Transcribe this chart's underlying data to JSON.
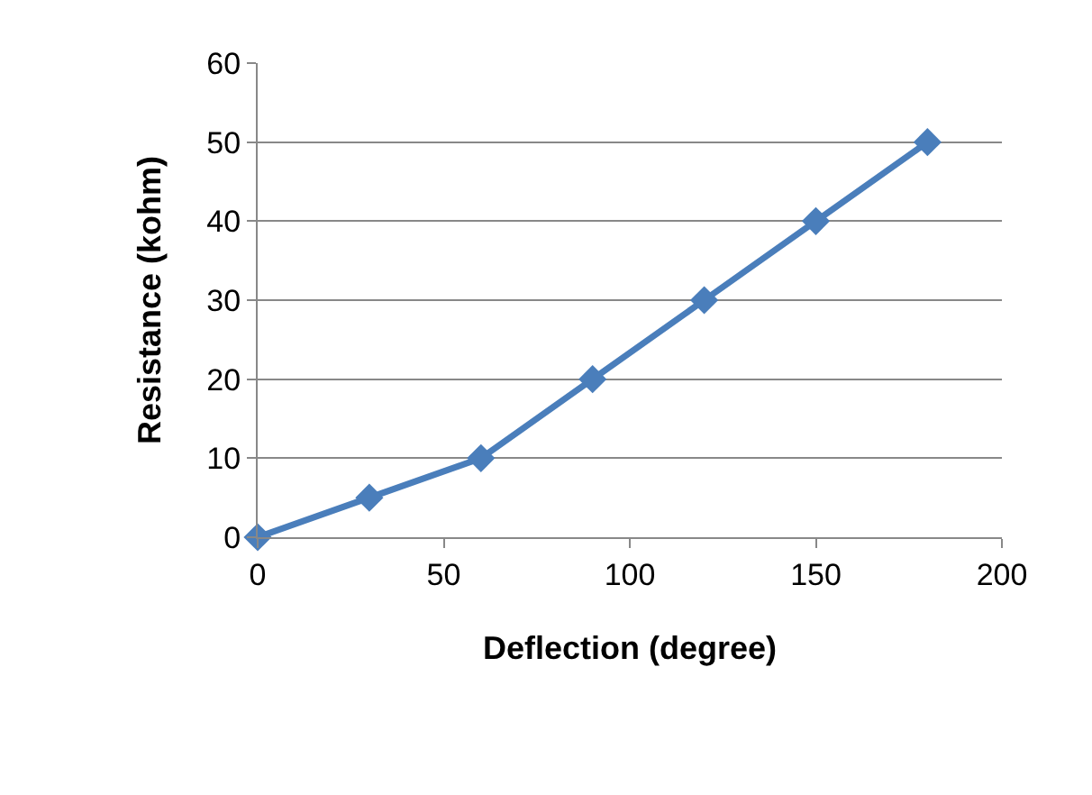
{
  "chart_data": {
    "type": "line",
    "xlabel": "Deflection (degree)",
    "ylabel": "Resistance (kohm)",
    "x": [
      0,
      30,
      60,
      90,
      120,
      150,
      180
    ],
    "series": [
      {
        "color": "#4a7ebb",
        "values": [
          0,
          5,
          10,
          20,
          30,
          40,
          50
        ]
      }
    ],
    "xlim": [
      0,
      200
    ],
    "xticks": [
      0,
      50,
      100,
      150,
      200
    ],
    "ylim": [
      0,
      60
    ],
    "yticks": [
      0,
      10,
      20,
      30,
      40,
      50,
      60
    ],
    "grid": "y",
    "marker": "diamond",
    "line_style": "solid"
  }
}
